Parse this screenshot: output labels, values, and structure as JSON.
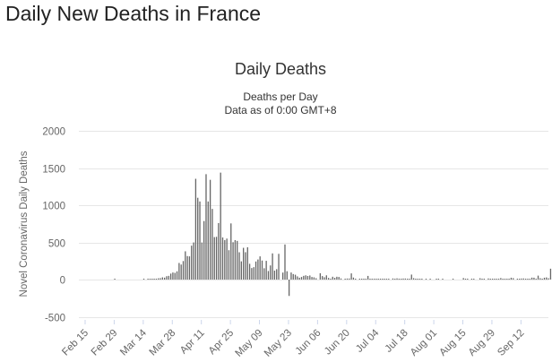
{
  "page": {
    "title": "Daily New Deaths in France"
  },
  "chart_data": {
    "type": "bar",
    "title": "Daily Deaths",
    "subtitle_lines": [
      "Deaths per Day",
      "Data as of 0:00 GMT+8"
    ],
    "xlabel": "",
    "ylabel": "Novel Coronavirus Daily Deaths",
    "ylim": [
      -500,
      2000
    ],
    "y_ticks": [
      2000,
      1500,
      1000,
      500,
      0,
      -500
    ],
    "x_ticks": [
      "Feb 15",
      "Feb 29",
      "Mar 14",
      "Mar 28",
      "Apr 11",
      "Apr 25",
      "May 09",
      "May 23",
      "Jun 06",
      "Jun 20",
      "Jul 04",
      "Jul 18",
      "Aug 01",
      "Aug 15",
      "Aug 29",
      "Sep 12"
    ],
    "x_tick_day_index": [
      0,
      14,
      28,
      42,
      56,
      70,
      84,
      98,
      112,
      126,
      140,
      154,
      168,
      182,
      196,
      210
    ],
    "grid": true,
    "legend": "none",
    "bar_color": "#666666",
    "start_date": "Feb 15",
    "values": [
      0,
      0,
      0,
      0,
      0,
      0,
      0,
      0,
      0,
      0,
      0,
      0,
      0,
      0,
      1,
      0,
      0,
      0,
      0,
      0,
      0,
      0,
      0,
      0,
      0,
      0,
      0,
      0,
      1,
      0,
      3,
      3,
      5,
      11,
      12,
      17,
      19,
      30,
      26,
      45,
      50,
      80,
      95,
      90,
      111,
      223,
      202,
      249,
      380,
      316,
      312,
      456,
      499,
      1355,
      1100,
      1050,
      499,
      787,
      1417,
      1050,
      1341,
      950,
      571,
      575,
      760,
      1438,
      566,
      530,
      551,
      395,
      755,
      502,
      530,
      520,
      367,
      245,
      427,
      368,
      434,
      212,
      155,
      167,
      243,
      270,
      312,
      256,
      152,
      252,
      115,
      190,
      352,
      120,
      140,
      346,
      0,
      94,
      472,
      112,
      -220,
      95,
      74,
      65,
      43,
      25,
      35,
      50,
      57,
      48,
      55,
      35,
      30,
      18,
      0,
      85,
      47,
      31,
      57,
      22,
      6,
      38,
      23,
      38,
      35,
      15,
      0,
      9,
      14,
      14,
      83,
      27,
      5,
      0,
      6,
      4,
      7,
      7,
      49,
      12,
      8,
      3,
      3,
      5,
      3,
      3,
      2,
      4,
      11,
      0,
      15,
      5,
      16,
      6,
      4,
      14,
      14,
      6,
      8,
      67,
      19,
      2,
      4,
      7,
      6,
      0,
      12,
      0,
      7,
      0,
      0,
      1,
      10,
      0,
      3,
      0,
      0,
      0,
      0,
      4,
      0,
      0,
      0,
      0,
      20,
      6,
      2,
      0,
      4,
      2,
      0,
      0,
      18,
      4,
      2,
      0,
      15,
      5,
      11,
      6,
      3,
      5,
      20,
      12,
      6,
      3,
      3,
      25,
      19,
      0,
      5,
      8,
      14,
      15,
      7,
      6,
      9,
      26,
      25,
      4,
      53,
      18,
      7,
      25,
      29,
      17,
      146,
      15,
      34,
      46,
      67
    ]
  }
}
